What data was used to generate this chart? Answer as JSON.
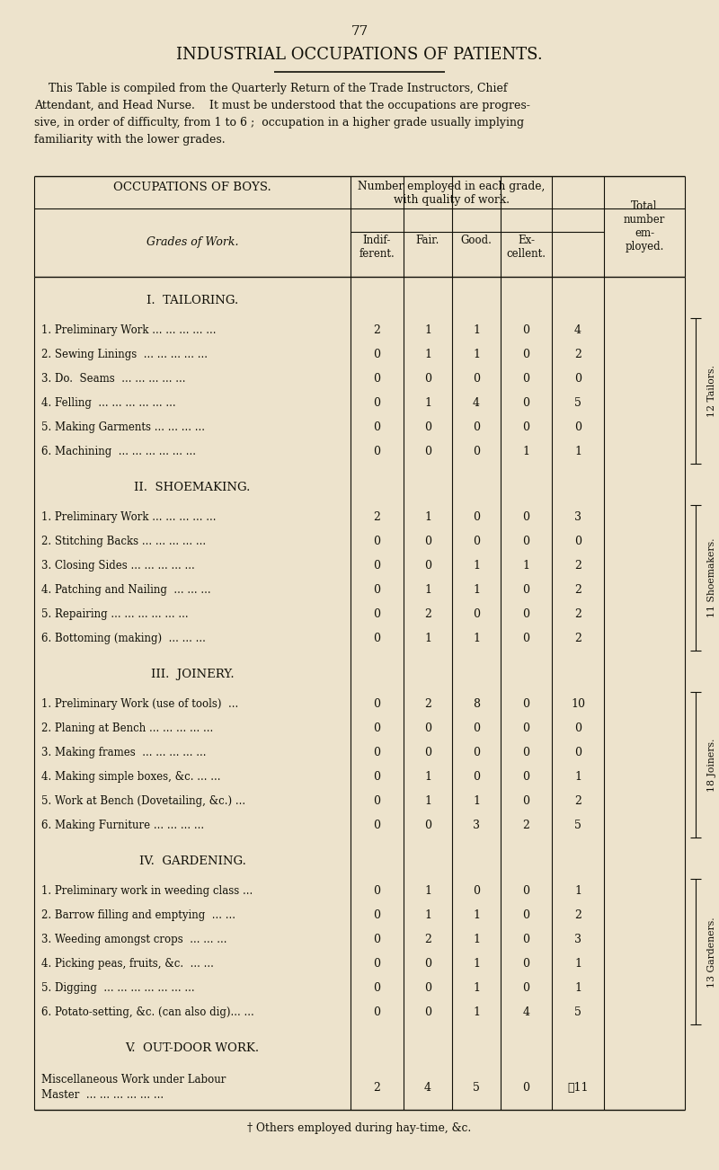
{
  "page_number": "77",
  "main_title": "INDUSTRIAL OCCUPATIONS OF PATIENTS.",
  "sections": [
    {
      "title": "I.  TAILORING.",
      "rows": [
        {
          "label": "1. Preliminary Work ... ... ... ... ...",
          "indif": "2",
          "fair": "1",
          "good": "1",
          "exc": "0",
          "total": "4"
        },
        {
          "label": "2. Sewing Linings  ... ... ... ... ...",
          "indif": "0",
          "fair": "1",
          "good": "1",
          "exc": "0",
          "total": "2"
        },
        {
          "label": "3. Do.  Seams  ... ... ... ... ...",
          "indif": "0",
          "fair": "0",
          "good": "0",
          "exc": "0",
          "total": "0"
        },
        {
          "label": "4. Felling  ... ... ... ... ... ...",
          "indif": "0",
          "fair": "1",
          "good": "4",
          "exc": "0",
          "total": "5"
        },
        {
          "label": "5. Making Garments ... ... ... ...",
          "indif": "0",
          "fair": "0",
          "good": "0",
          "exc": "0",
          "total": "0"
        },
        {
          "label": "6. Machining  ... ... ... ... ... ...",
          "indif": "0",
          "fair": "0",
          "good": "0",
          "exc": "1",
          "total": "1"
        }
      ],
      "side_label": "12 Tailors."
    },
    {
      "title": "II.  SHOEMAKING.",
      "rows": [
        {
          "label": "1. Preliminary Work ... ... ... ... ...",
          "indif": "2",
          "fair": "1",
          "good": "0",
          "exc": "0",
          "total": "3"
        },
        {
          "label": "2. Stitching Backs ... ... ... ... ...",
          "indif": "0",
          "fair": "0",
          "good": "0",
          "exc": "0",
          "total": "0"
        },
        {
          "label": "3. Closing Sides ... ... ... ... ...",
          "indif": "0",
          "fair": "0",
          "good": "1",
          "exc": "1",
          "total": "2"
        },
        {
          "label": "4. Patching and Nailing  ... ... ...",
          "indif": "0",
          "fair": "1",
          "good": "1",
          "exc": "0",
          "total": "2"
        },
        {
          "label": "5. Repairing ... ... ... ... ... ...",
          "indif": "0",
          "fair": "2",
          "good": "0",
          "exc": "0",
          "total": "2"
        },
        {
          "label": "6. Bottoming (making)  ... ... ...",
          "indif": "0",
          "fair": "1",
          "good": "1",
          "exc": "0",
          "total": "2"
        }
      ],
      "side_label": "11 Shoemakers."
    },
    {
      "title": "III.  JOINERY.",
      "rows": [
        {
          "label": "1. Preliminary Work (use of tools)  ...",
          "indif": "0",
          "fair": "2",
          "good": "8",
          "exc": "0",
          "total": "10"
        },
        {
          "label": "2. Planing at Bench ... ... ... ... ...",
          "indif": "0",
          "fair": "0",
          "good": "0",
          "exc": "0",
          "total": "0"
        },
        {
          "label": "3. Making frames  ... ... ... ... ...",
          "indif": "0",
          "fair": "0",
          "good": "0",
          "exc": "0",
          "total": "0"
        },
        {
          "label": "4. Making simple boxes, &c. ... ...",
          "indif": "0",
          "fair": "1",
          "good": "0",
          "exc": "0",
          "total": "1"
        },
        {
          "label": "5. Work at Bench (Dovetailing, &c.) ...",
          "indif": "0",
          "fair": "1",
          "good": "1",
          "exc": "0",
          "total": "2"
        },
        {
          "label": "6. Making Furniture ... ... ... ...",
          "indif": "0",
          "fair": "0",
          "good": "3",
          "exc": "2",
          "total": "5"
        }
      ],
      "side_label": "18 Joiners."
    },
    {
      "title": "IV.  GARDENING.",
      "rows": [
        {
          "label": "1. Preliminary work in weeding class ...",
          "indif": "0",
          "fair": "1",
          "good": "0",
          "exc": "0",
          "total": "1"
        },
        {
          "label": "2. Barrow filling and emptying  ... ...",
          "indif": "0",
          "fair": "1",
          "good": "1",
          "exc": "0",
          "total": "2"
        },
        {
          "label": "3. Weeding amongst crops  ... ... ...",
          "indif": "0",
          "fair": "2",
          "good": "1",
          "exc": "0",
          "total": "3"
        },
        {
          "label": "4. Picking peas, fruits, &c.  ... ...",
          "indif": "0",
          "fair": "0",
          "good": "1",
          "exc": "0",
          "total": "1"
        },
        {
          "label": "5. Digging  ... ... ... ... ... ... ...",
          "indif": "0",
          "fair": "0",
          "good": "1",
          "exc": "0",
          "total": "1"
        },
        {
          "label": "6. Potato-setting, &c. (can also dig)... ...",
          "indif": "0",
          "fair": "0",
          "good": "1",
          "exc": "4",
          "total": "5"
        }
      ],
      "side_label": "13 Gardeners."
    },
    {
      "title": "V.  OUT-DOOR WORK.",
      "rows": [
        {
          "label": "Miscellaneous Work under Labour\nMaster  ... ... ... ... ... ...",
          "indif": "2",
          "fair": "4",
          "good": "5",
          "exc": "0",
          "total": "✑11"
        }
      ],
      "side_label": ""
    }
  ],
  "footnote": "† Others employed during hay-time, &c.",
  "bg_color": "#ede3cc",
  "text_color": "#111008",
  "line_color": "#111008"
}
